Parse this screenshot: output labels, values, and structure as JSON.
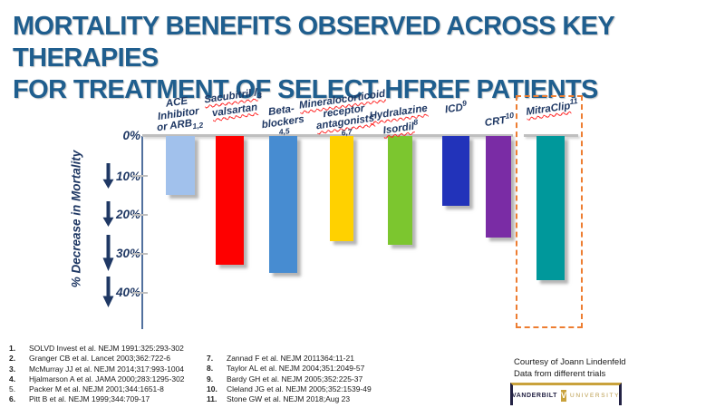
{
  "header": {
    "title_line1": "MORTALITY BENEFITS OBSERVED ACROSS KEY THERAPIES",
    "title_line2": "FOR TREATMENT OF SELECT HFREF PATIENTS",
    "title_color": "#1F5E8E"
  },
  "chart_data": {
    "type": "bar",
    "direction": "downward",
    "title": "",
    "xlabel": "",
    "ylabel": "% Decrease in Mortality",
    "yticks": [
      "0%",
      "10%",
      "20%",
      "30%",
      "40%"
    ],
    "ylim": [
      0,
      45
    ],
    "grid": false,
    "categories": [
      "ACE Inhibitor or ARB",
      "Sacubitril / valsartan",
      "Beta-blockers",
      "Mineralocorticoid receptor antagonists",
      "Hydralazine Isordil",
      "ICD",
      "CRT",
      "MitraClip"
    ],
    "values": [
      15,
      33,
      35,
      27,
      28,
      18,
      26,
      37
    ],
    "reference_markers": [
      "1,2",
      "3",
      "4,5",
      "6,7",
      "8",
      "9",
      "10",
      "11"
    ],
    "bar_colors": [
      "#A1C1EC",
      "#FE0000",
      "#478CD1",
      "#FFD100",
      "#7CC62F",
      "#2233BA",
      "#7A2CA5",
      "#00989B"
    ],
    "highlight": {
      "category": "MitraClip",
      "style": "dashed-outline",
      "color": "#ED7D31"
    },
    "therapies": [
      {
        "x": 183,
        "w": 32,
        "label_cx": 197,
        "label_bottom": 148,
        "value": 15,
        "color": "#A1C1EC",
        "lines": [
          {
            "text": "ACE"
          },
          {
            "text": "Inhibitor"
          },
          {
            "text": "or ARB",
            "marker": "1,2",
            "marker_style": "sub"
          }
        ]
      },
      {
        "x": 238,
        "w": 31,
        "label_cx": 258,
        "label_bottom": 128,
        "value": 33,
        "color": "#FE0000",
        "lines": [
          {
            "text": "Sacubitril /",
            "wavy": true,
            "marker": "3",
            "marker_style": "sub"
          },
          {
            "text": "valsartan",
            "wavy": true
          }
        ]
      },
      {
        "x": 297,
        "w": 31,
        "label_cx": 312,
        "label_bottom": 150,
        "value": 35,
        "color": "#478CD1",
        "lines": [
          {
            "text": "Beta-"
          },
          {
            "text": "blockers"
          },
          {
            "text": "4,5",
            "small": true
          }
        ]
      },
      {
        "x": 364,
        "w": 26,
        "label_cx": 380,
        "label_bottom": 150,
        "value": 27,
        "color": "#FFD100",
        "lines": [
          {
            "text": "Mineralocorticoid",
            "wavy": true
          },
          {
            "text": "receptor"
          },
          {
            "text": "antagonists",
            "wavy": true
          },
          {
            "text": "6,7",
            "small": true
          }
        ]
      },
      {
        "x": 428,
        "w": 27,
        "label_cx": 441,
        "label_bottom": 148,
        "value": 28,
        "color": "#7CC62F",
        "lines": [
          {
            "text": "Hydralazine",
            "wavy": true
          },
          {
            "text": "Isordil",
            "wavy": true,
            "marker": "8",
            "marker_style": "sup"
          }
        ]
      },
      {
        "x": 488,
        "w": 30,
        "label_cx": 503,
        "label_bottom": 126,
        "value": 18,
        "color": "#2233BA",
        "lines": [
          {
            "text": "ICD",
            "marker": "9",
            "marker_style": "sup"
          }
        ]
      },
      {
        "x": 536,
        "w": 28,
        "label_cx": 551,
        "label_bottom": 140,
        "value": 26,
        "color": "#7A2CA5",
        "lines": [
          {
            "text": "CRT",
            "marker": "10",
            "marker_style": "sup"
          }
        ]
      },
      {
        "x": 592,
        "w": 31,
        "label_cx": 609,
        "label_bottom": 126,
        "value": 37,
        "color": "#00989B",
        "lines": [
          {
            "text": "MitraClip",
            "wavy": true,
            "marker": "11",
            "marker_style": "sup"
          }
        ]
      }
    ]
  },
  "references": [
    {
      "num": "1.",
      "text": "SOLVD Invest et al. NEJM 1991:325:293-302"
    },
    {
      "num": "2.",
      "text": "Granger CB et al. Lancet 2003;362:722-6"
    },
    {
      "num": "3.",
      "text": "McMurray JJ et al. NEJM 2014;317:993-1004"
    },
    {
      "num": "4.",
      "text": "Hjalmarson A et al. JAMA 2000;283:1295-302"
    },
    {
      "num": "5.",
      "text": "Packer M et al. NEJM 2001;344:1651-8"
    },
    {
      "num": "6.",
      "text": "Pitt B et al. NEJM 1999;344:709-17"
    },
    {
      "num": "7.",
      "text": "Zannad F et al. NEJM 2011364:11-21"
    },
    {
      "num": "8.",
      "text": "Taylor AL et al. NEJM 2004;351:2049-57"
    },
    {
      "num": "9.",
      "text": "Bardy GH et al. NEJM 2005;352:225-37"
    },
    {
      "num": "10.",
      "text": "Cleland JG et al. NEJM  2005;352:1539-49"
    },
    {
      "num": "11.",
      "text": "Stone GW et al. NEJM 2018;Aug 23"
    }
  ],
  "footer": {
    "courtesy_line1": "Courtesy of Joann Lindenfeld",
    "courtesy_line2": "Data from different trials"
  },
  "logo": {
    "name1": "VANDERBILT",
    "shield_letter": "V",
    "name2": "UNIVERSITY",
    "gold": "#C9A23C",
    "navy": "#232244"
  }
}
